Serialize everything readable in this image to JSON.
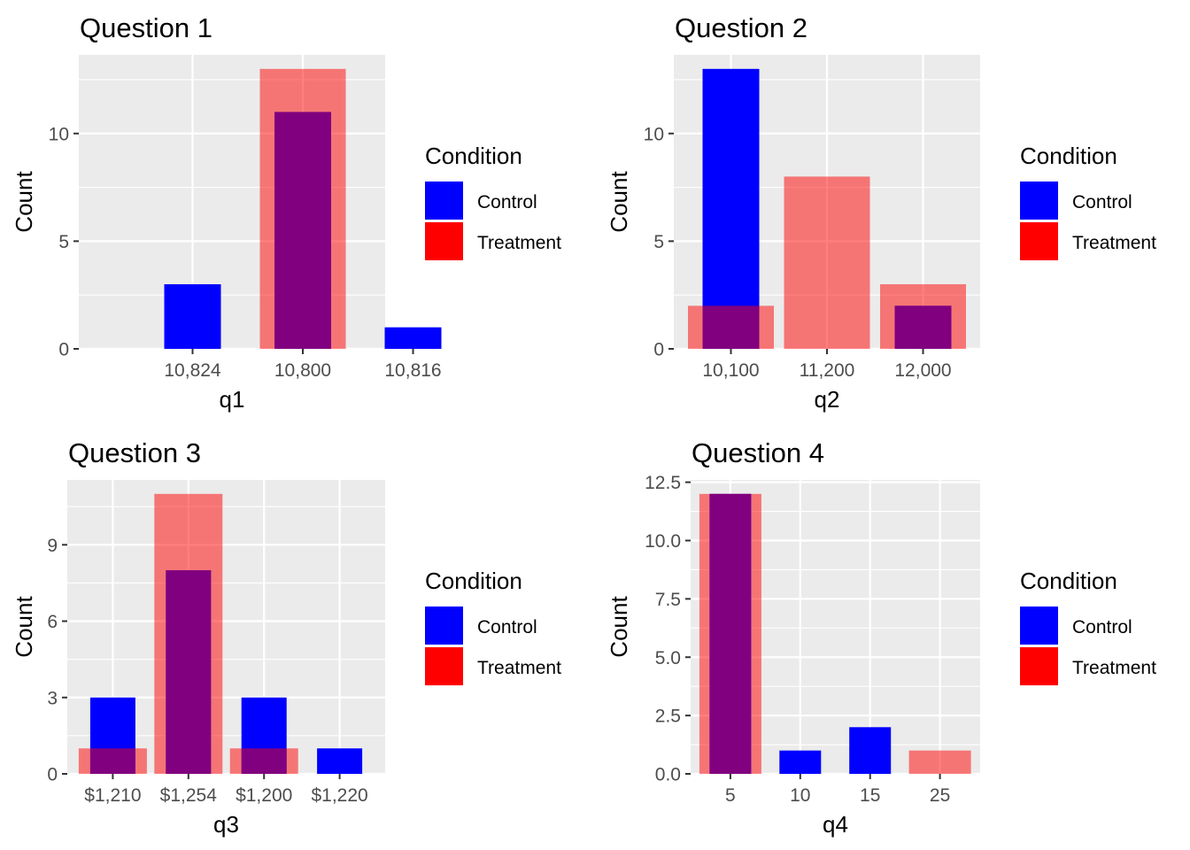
{
  "legend": {
    "title": "Condition",
    "items": [
      {
        "label": "Control",
        "color": "#0000FF"
      },
      {
        "label": "Treatment",
        "color": "#FF0000"
      }
    ]
  },
  "colors": {
    "control": "#0000FF",
    "treatment": "#FF0000",
    "treatment_alpha": 0.5,
    "panel_bg": "#EBEBEB",
    "grid": "#FFFFFF"
  },
  "chart_data": [
    {
      "type": "bar",
      "title": "Question 1",
      "xlabel": "q1",
      "ylabel": "Count",
      "categories": [
        "10,824",
        "10,800",
        "10,816"
      ],
      "series": [
        {
          "name": "Control",
          "values": [
            3,
            11,
            1
          ]
        },
        {
          "name": "Treatment",
          "values": [
            0,
            13,
            0
          ]
        }
      ],
      "yticks": [
        "0",
        "5",
        "10"
      ],
      "ylim": [
        0,
        13.65
      ],
      "legend_position": "right"
    },
    {
      "type": "bar",
      "title": "Question 2",
      "xlabel": "q2",
      "ylabel": "Count",
      "categories": [
        "10,100",
        "11,200",
        "12,000"
      ],
      "series": [
        {
          "name": "Control",
          "values": [
            13,
            0,
            2
          ]
        },
        {
          "name": "Treatment",
          "values": [
            2,
            8,
            3
          ]
        }
      ],
      "yticks": [
        "0",
        "5",
        "10"
      ],
      "ylim": [
        0,
        13.65
      ],
      "legend_position": "right"
    },
    {
      "type": "bar",
      "title": "Question 3",
      "xlabel": "q3",
      "ylabel": "Count",
      "categories": [
        "$1,210",
        "$1,254",
        "$1,200",
        "$1,220"
      ],
      "series": [
        {
          "name": "Control",
          "values": [
            3,
            8,
            3,
            1
          ]
        },
        {
          "name": "Treatment",
          "values": [
            1,
            11,
            1,
            0
          ]
        }
      ],
      "yticks": [
        "0",
        "3",
        "6",
        "9"
      ],
      "ylim": [
        0,
        11.55
      ],
      "legend_position": "right"
    },
    {
      "type": "bar",
      "title": "Question 4",
      "xlabel": "q4",
      "ylabel": "Count",
      "categories": [
        "5",
        "10",
        "15",
        "25"
      ],
      "series": [
        {
          "name": "Control",
          "values": [
            12,
            1,
            2,
            0
          ]
        },
        {
          "name": "Treatment",
          "values": [
            12,
            0,
            0,
            1
          ]
        }
      ],
      "yticks": [
        "0.0",
        "2.5",
        "5.0",
        "7.5",
        "10.0",
        "12.5"
      ],
      "ylim": [
        0,
        12.6
      ],
      "legend_position": "right"
    }
  ]
}
